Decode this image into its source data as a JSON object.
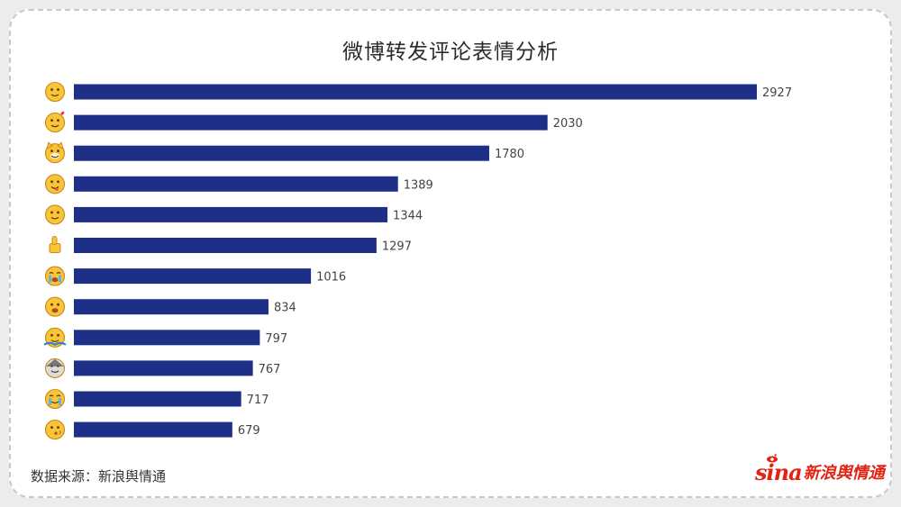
{
  "chart_data": {
    "type": "bar",
    "orientation": "horizontal",
    "title": "微博转发评论表情分析",
    "categories": [
      "smile",
      "blush-heart",
      "doge",
      "yum",
      "smirk",
      "thumbs-up",
      "laughing-tears",
      "hug",
      "shrug",
      "husky",
      "crying",
      "drool-kiss"
    ],
    "values": [
      2927,
      2030,
      1780,
      1389,
      1344,
      1297,
      1016,
      834,
      797,
      767,
      717,
      679
    ],
    "bar_color": "#1d2f86",
    "xlim": [
      0,
      2927
    ],
    "grid": false,
    "legend": "none"
  },
  "footer": {
    "source": "数据来源：新浪舆情通",
    "logo_text": "sina",
    "logo_cn": "新浪舆情通"
  },
  "colors": {
    "logo": "#e32213",
    "emoji_face": "#f7c535",
    "emoji_outline": "#c9891a"
  }
}
